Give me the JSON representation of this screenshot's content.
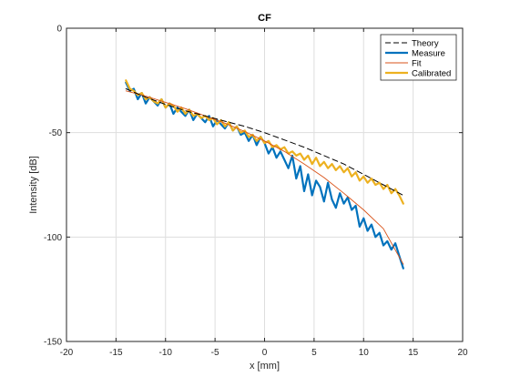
{
  "colors": {
    "theory": "#000000",
    "measure": "#0072BD",
    "fit": "#D95319",
    "calibrated": "#EDB120",
    "grid": "#dedede",
    "axis": "#262626"
  },
  "chart_data": {
    "type": "line",
    "title": "CF",
    "xlabel": "x [mm]",
    "ylabel": "Intensity [dB]",
    "xlim": [
      -20,
      20
    ],
    "ylim": [
      -150,
      0
    ],
    "xticks": [
      -20,
      -15,
      -10,
      -5,
      0,
      5,
      10,
      15,
      20
    ],
    "yticks": [
      0,
      -50,
      -100,
      -150
    ],
    "xtick_labels": [
      "-20",
      "-15",
      "-10",
      "-5",
      "0",
      "5",
      "10",
      "15",
      "20"
    ],
    "ytick_labels": [
      "0",
      "-50",
      "-100",
      "-150"
    ],
    "grid": true,
    "legend_position": "top-right",
    "series": [
      {
        "name": "Theory",
        "style": "dashed",
        "x": [
          -14,
          -12,
          -10,
          -8,
          -6,
          -4,
          -2,
          0,
          2,
          4,
          6,
          8,
          10,
          12,
          14
        ],
        "y": [
          -29,
          -33,
          -36.5,
          -39.5,
          -42,
          -44.5,
          -47,
          -50,
          -53.5,
          -57,
          -61,
          -65,
          -70,
          -75,
          -80
        ]
      },
      {
        "name": "Measure",
        "style": "solid-thick",
        "x": [
          -14,
          -13.6,
          -13.2,
          -12.8,
          -12.4,
          -12,
          -11.6,
          -11.2,
          -10.8,
          -10.4,
          -10,
          -9.6,
          -9.2,
          -8.8,
          -8.4,
          -8,
          -7.6,
          -7.2,
          -6.8,
          -6.4,
          -6,
          -5.6,
          -5.2,
          -4.8,
          -4.4,
          -4,
          -3.6,
          -3.2,
          -2.8,
          -2.4,
          -2,
          -1.6,
          -1.2,
          -0.8,
          -0.4,
          0,
          0.4,
          0.8,
          1.2,
          1.6,
          2,
          2.4,
          2.8,
          3.2,
          3.6,
          4,
          4.4,
          4.8,
          5.2,
          5.6,
          6,
          6.4,
          6.8,
          7.2,
          7.6,
          8,
          8.4,
          8.8,
          9.2,
          9.6,
          10,
          10.4,
          10.8,
          11.2,
          11.6,
          12,
          12.4,
          12.8,
          13.2,
          13.6,
          14
        ],
        "y": [
          -26,
          -30,
          -29,
          -34,
          -31,
          -36,
          -33,
          -35,
          -37,
          -34,
          -38,
          -36,
          -41,
          -38,
          -40,
          -42,
          -39,
          -44,
          -41,
          -43,
          -45,
          -42,
          -47,
          -44,
          -46,
          -48,
          -45,
          -49,
          -47,
          -51,
          -50,
          -54,
          -51,
          -56,
          -52,
          -55,
          -60,
          -57,
          -62,
          -59,
          -63,
          -67,
          -61,
          -72,
          -66,
          -78,
          -70,
          -80,
          -73,
          -76,
          -83,
          -74,
          -82,
          -86,
          -79,
          -84,
          -81,
          -87,
          -85,
          -95,
          -91,
          -97,
          -94,
          -100,
          -98,
          -104,
          -102,
          -106,
          -103,
          -109,
          -115
        ]
      },
      {
        "name": "Fit",
        "style": "solid-thin",
        "x": [
          -14,
          -12,
          -10,
          -8,
          -6,
          -4,
          -2,
          0,
          2,
          4,
          6,
          8,
          10,
          12,
          14
        ],
        "y": [
          -30,
          -32.5,
          -35.5,
          -38.5,
          -42,
          -45.5,
          -49.5,
          -54,
          -59,
          -65,
          -71.5,
          -79,
          -87,
          -96,
          -113
        ]
      },
      {
        "name": "Calibrated",
        "style": "solid-thick",
        "x": [
          -14,
          -13.6,
          -13.2,
          -12.8,
          -12.4,
          -12,
          -11.6,
          -11.2,
          -10.8,
          -10.4,
          -10,
          -9.6,
          -9.2,
          -8.8,
          -8.4,
          -8,
          -7.6,
          -7.2,
          -6.8,
          -6.4,
          -6,
          -5.6,
          -5.2,
          -4.8,
          -4.4,
          -4,
          -3.6,
          -3.2,
          -2.8,
          -2.4,
          -2,
          -1.6,
          -1.2,
          -0.8,
          -0.4,
          0,
          0.4,
          0.8,
          1.2,
          1.6,
          2,
          2.4,
          2.8,
          3.2,
          3.6,
          4,
          4.4,
          4.8,
          5.2,
          5.6,
          6,
          6.4,
          6.8,
          7.2,
          7.6,
          8,
          8.4,
          8.8,
          9.2,
          9.6,
          10,
          10.4,
          10.8,
          11.2,
          11.6,
          12,
          12.4,
          12.8,
          13.2,
          13.6,
          14
        ],
        "y": [
          -25,
          -29,
          -30,
          -32,
          -31,
          -34,
          -33,
          -35,
          -36,
          -34,
          -38,
          -36,
          -37,
          -40,
          -38,
          -41,
          -39,
          -42,
          -41,
          -43,
          -42,
          -44,
          -43,
          -46,
          -44,
          -47,
          -45,
          -49,
          -47,
          -50,
          -49,
          -52,
          -51,
          -54,
          -52,
          -55,
          -54,
          -57,
          -56,
          -58,
          -57,
          -60,
          -59,
          -61,
          -60,
          -63,
          -61,
          -65,
          -62,
          -66,
          -64,
          -67,
          -65,
          -68,
          -66,
          -69,
          -67,
          -71,
          -69,
          -73,
          -71,
          -74,
          -72,
          -75,
          -74,
          -77,
          -75,
          -79,
          -77,
          -80,
          -84
        ]
      }
    ]
  }
}
